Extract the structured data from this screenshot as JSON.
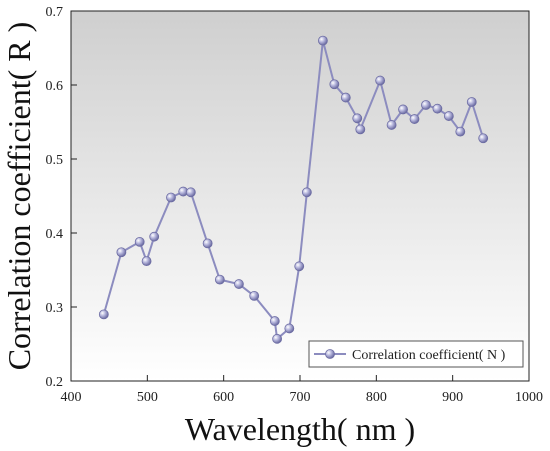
{
  "chart_data": {
    "type": "line",
    "title": "",
    "xlabel": "Wavelength( nm )",
    "ylabel": "Correlation coefficient( R )",
    "xlim": [
      400,
      1000
    ],
    "ylim": [
      0.2,
      0.7
    ],
    "xticks": [
      "400",
      "500",
      "600",
      "700",
      "800",
      "900",
      "1000"
    ],
    "yticks": [
      "0.2",
      "0.3",
      "0.4",
      "0.5",
      "0.6",
      "0.7"
    ],
    "grid": false,
    "background": "gradient gray (top) to white (bottom)",
    "legend_position": "bottom-right",
    "series": [
      {
        "name": "Correlation coefficient( N )",
        "color": "#8c8cbf",
        "marker": "sphere",
        "x": [
          443,
          466,
          490,
          499,
          509,
          531,
          547,
          557,
          579,
          595,
          620,
          640,
          667,
          670,
          686,
          699,
          709,
          730,
          745,
          760,
          775,
          779,
          805,
          820,
          835,
          850,
          865,
          880,
          895,
          910,
          925,
          940
        ],
        "y": [
          0.29,
          0.374,
          0.388,
          0.362,
          0.395,
          0.448,
          0.456,
          0.455,
          0.386,
          0.337,
          0.331,
          0.315,
          0.281,
          0.257,
          0.271,
          0.355,
          0.455,
          0.66,
          0.601,
          0.583,
          0.555,
          0.54,
          0.606,
          0.546,
          0.567,
          0.554,
          0.573,
          0.568,
          0.558,
          0.537,
          0.577,
          0.528
        ]
      }
    ]
  }
}
